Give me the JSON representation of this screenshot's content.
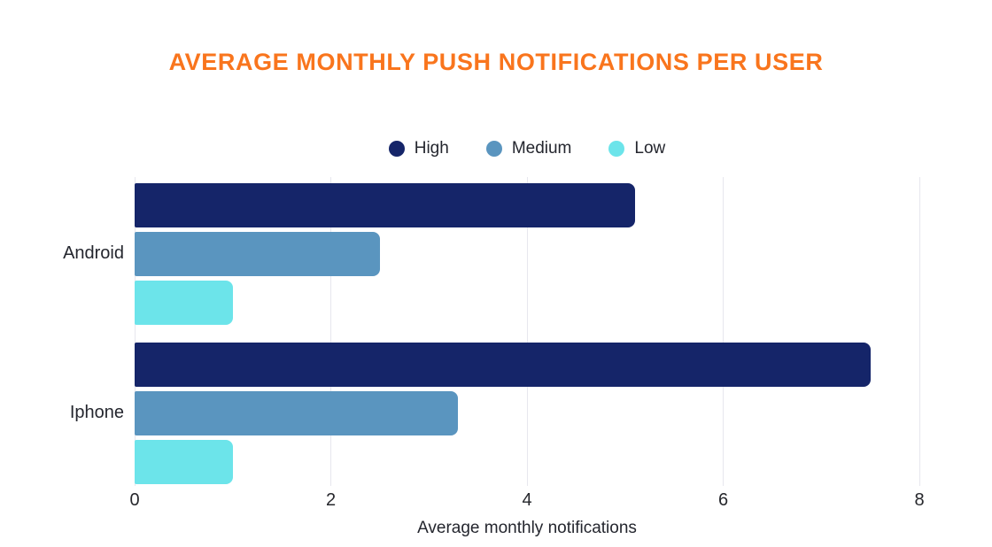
{
  "title": "AVERAGE MONTHLY PUSH NOTIFICATIONS PER USER",
  "colors": {
    "title": "#f9751d",
    "high": "#152569",
    "medium": "#5a95bf",
    "low": "#6ce4ea",
    "gridline": "#e7e7ee",
    "text": "#24262e"
  },
  "chart_data": {
    "type": "bar",
    "orientation": "horizontal",
    "title": "AVERAGE MONTHLY PUSH NOTIFICATIONS PER USER",
    "xlabel": "Average monthly notifications",
    "ylabel": "",
    "categories": [
      "Android",
      "Iphone"
    ],
    "series": [
      {
        "name": "High",
        "color": "#152569",
        "values": [
          5.1,
          7.5
        ]
      },
      {
        "name": "Medium",
        "color": "#5a95bf",
        "values": [
          2.5,
          3.3
        ]
      },
      {
        "name": "Low",
        "color": "#6ce4ea",
        "values": [
          1.0,
          1.0
        ]
      }
    ],
    "xlim": [
      0,
      8
    ],
    "xticks": [
      0,
      2,
      4,
      6,
      8
    ],
    "grid": true,
    "legend_position": "top"
  }
}
